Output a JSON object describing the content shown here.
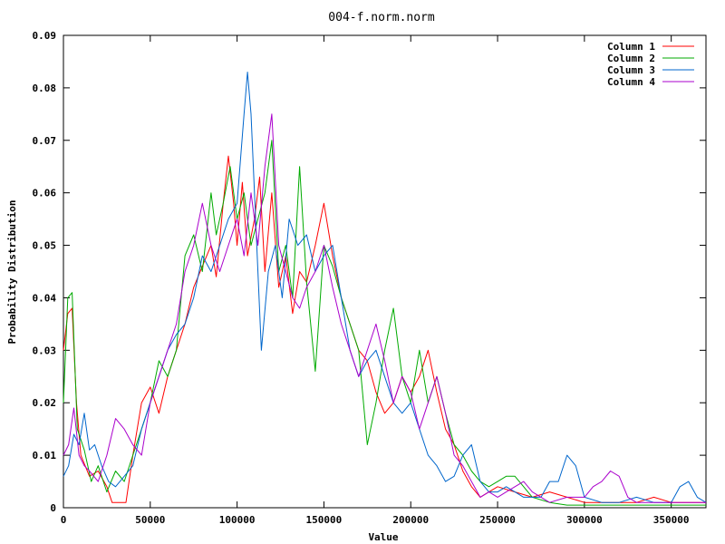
{
  "chart_data": {
    "type": "line",
    "title": "004-f.norm.norm",
    "xlabel": "Value",
    "ylabel": "Probability Distribution",
    "xlim": [
      0,
      370000
    ],
    "ylim": [
      0,
      0.09
    ],
    "x_ticks": [
      0,
      50000,
      100000,
      150000,
      200000,
      250000,
      300000,
      350000
    ],
    "y_ticks": [
      0,
      0.01,
      0.02,
      0.03,
      0.04,
      0.05,
      0.06,
      0.07,
      0.08,
      0.09
    ],
    "x_tick_labels": [
      "0",
      "50000",
      "100000",
      "150000",
      "200000",
      "250000",
      "300000",
      "350000"
    ],
    "y_tick_labels": [
      "0",
      "0.01",
      "0.02",
      "0.03",
      "0.04",
      "0.05",
      "0.06",
      "0.07",
      "0.08",
      "0.09"
    ],
    "grid": false,
    "legend_position": "top-right",
    "series": [
      {
        "name": "Column 1",
        "color": "#ff0000",
        "x": [
          0,
          2500,
          5000,
          7500,
          10000,
          15000,
          20000,
          25000,
          28000,
          32000,
          36000,
          40000,
          45000,
          50000,
          55000,
          60000,
          65000,
          70000,
          75000,
          80000,
          85000,
          88000,
          92000,
          95000,
          98000,
          100000,
          103000,
          106000,
          110000,
          113000,
          116000,
          120000,
          124000,
          128000,
          132000,
          136000,
          140000,
          145000,
          150000,
          155000,
          160000,
          165000,
          170000,
          175000,
          180000,
          185000,
          190000,
          195000,
          200000,
          205000,
          210000,
          215000,
          220000,
          225000,
          230000,
          235000,
          240000,
          245000,
          250000,
          260000,
          270000,
          280000,
          290000,
          300000,
          310000,
          320000,
          330000,
          340000,
          350000,
          360000,
          370000
        ],
        "y": [
          0.03,
          0.037,
          0.038,
          0.02,
          0.01,
          0.006,
          0.007,
          0.004,
          0.001,
          0.001,
          0.001,
          0.01,
          0.02,
          0.023,
          0.018,
          0.025,
          0.03,
          0.035,
          0.042,
          0.046,
          0.05,
          0.044,
          0.058,
          0.067,
          0.058,
          0.05,
          0.062,
          0.048,
          0.055,
          0.063,
          0.045,
          0.06,
          0.042,
          0.048,
          0.037,
          0.045,
          0.043,
          0.05,
          0.058,
          0.048,
          0.04,
          0.035,
          0.03,
          0.028,
          0.022,
          0.018,
          0.02,
          0.025,
          0.022,
          0.025,
          0.03,
          0.022,
          0.015,
          0.012,
          0.007,
          0.004,
          0.002,
          0.003,
          0.004,
          0.003,
          0.002,
          0.003,
          0.002,
          0.001,
          0.001,
          0.001,
          0.001,
          0.002,
          0.001,
          0.001,
          0.001
        ]
      },
      {
        "name": "Column 2",
        "color": "#00aa00",
        "x": [
          0,
          2500,
          5000,
          8000,
          12000,
          16000,
          20000,
          25000,
          30000,
          35000,
          40000,
          45000,
          50000,
          55000,
          60000,
          65000,
          70000,
          75000,
          80000,
          85000,
          88000,
          92000,
          96000,
          100000,
          104000,
          108000,
          112000,
          116000,
          120000,
          124000,
          128000,
          132000,
          136000,
          140000,
          145000,
          150000,
          155000,
          160000,
          165000,
          170000,
          175000,
          180000,
          185000,
          190000,
          195000,
          200000,
          205000,
          210000,
          215000,
          220000,
          225000,
          230000,
          235000,
          240000,
          245000,
          250000,
          255000,
          260000,
          265000,
          270000,
          280000,
          290000,
          300000,
          310000,
          320000,
          330000,
          340000,
          350000,
          360000,
          370000
        ],
        "y": [
          0.02,
          0.04,
          0.041,
          0.015,
          0.011,
          0.005,
          0.008,
          0.003,
          0.007,
          0.005,
          0.01,
          0.015,
          0.02,
          0.028,
          0.025,
          0.03,
          0.048,
          0.052,
          0.045,
          0.06,
          0.052,
          0.058,
          0.065,
          0.055,
          0.06,
          0.05,
          0.055,
          0.06,
          0.07,
          0.045,
          0.05,
          0.04,
          0.065,
          0.043,
          0.026,
          0.05,
          0.046,
          0.04,
          0.035,
          0.03,
          0.012,
          0.02,
          0.03,
          0.038,
          0.025,
          0.02,
          0.03,
          0.02,
          0.025,
          0.018,
          0.012,
          0.01,
          0.007,
          0.005,
          0.004,
          0.005,
          0.006,
          0.006,
          0.004,
          0.002,
          0.001,
          0.0005,
          0.0005,
          0.0005,
          0.0005,
          0.0005,
          0.0005,
          0.0005,
          0.0005,
          0.0005
        ]
      },
      {
        "name": "Column 3",
        "color": "#0066cc",
        "x": [
          0,
          3000,
          6000,
          9000,
          12000,
          15000,
          18000,
          22000,
          26000,
          30000,
          35000,
          40000,
          45000,
          50000,
          55000,
          60000,
          65000,
          70000,
          75000,
          80000,
          85000,
          90000,
          95000,
          100000,
          104000,
          106000,
          108000,
          110000,
          114000,
          118000,
          122000,
          126000,
          130000,
          135000,
          140000,
          145000,
          150000,
          155000,
          160000,
          165000,
          170000,
          175000,
          180000,
          185000,
          190000,
          195000,
          200000,
          205000,
          210000,
          215000,
          220000,
          225000,
          230000,
          235000,
          240000,
          245000,
          250000,
          255000,
          260000,
          265000,
          270000,
          275000,
          280000,
          285000,
          290000,
          295000,
          300000,
          310000,
          320000,
          330000,
          340000,
          350000,
          355000,
          360000,
          365000,
          370000
        ],
        "y": [
          0.006,
          0.008,
          0.014,
          0.012,
          0.018,
          0.011,
          0.012,
          0.008,
          0.005,
          0.004,
          0.006,
          0.008,
          0.015,
          0.02,
          0.025,
          0.03,
          0.033,
          0.035,
          0.04,
          0.048,
          0.045,
          0.05,
          0.055,
          0.058,
          0.075,
          0.083,
          0.075,
          0.06,
          0.03,
          0.045,
          0.05,
          0.04,
          0.055,
          0.05,
          0.052,
          0.045,
          0.048,
          0.05,
          0.04,
          0.03,
          0.025,
          0.028,
          0.03,
          0.025,
          0.02,
          0.018,
          0.02,
          0.015,
          0.01,
          0.008,
          0.005,
          0.006,
          0.01,
          0.012,
          0.005,
          0.003,
          0.003,
          0.004,
          0.003,
          0.002,
          0.002,
          0.002,
          0.005,
          0.005,
          0.01,
          0.008,
          0.002,
          0.001,
          0.001,
          0.002,
          0.001,
          0.001,
          0.004,
          0.005,
          0.002,
          0.001
        ]
      },
      {
        "name": "Column 4",
        "color": "#aa00cc",
        "x": [
          0,
          3000,
          6000,
          9000,
          12000,
          15000,
          20000,
          25000,
          30000,
          35000,
          40000,
          45000,
          50000,
          55000,
          60000,
          65000,
          70000,
          75000,
          80000,
          85000,
          90000,
          95000,
          100000,
          104000,
          108000,
          112000,
          116000,
          120000,
          124000,
          128000,
          132000,
          136000,
          140000,
          145000,
          150000,
          155000,
          160000,
          165000,
          170000,
          175000,
          180000,
          185000,
          190000,
          195000,
          200000,
          205000,
          210000,
          215000,
          220000,
          225000,
          230000,
          235000,
          240000,
          245000,
          250000,
          255000,
          260000,
          265000,
          270000,
          275000,
          280000,
          290000,
          300000,
          305000,
          310000,
          315000,
          320000,
          325000,
          330000,
          340000,
          350000,
          360000,
          370000
        ],
        "y": [
          0.01,
          0.012,
          0.019,
          0.01,
          0.008,
          0.007,
          0.005,
          0.01,
          0.017,
          0.015,
          0.012,
          0.01,
          0.02,
          0.025,
          0.03,
          0.035,
          0.045,
          0.05,
          0.058,
          0.05,
          0.045,
          0.05,
          0.055,
          0.048,
          0.06,
          0.05,
          0.065,
          0.075,
          0.05,
          0.045,
          0.04,
          0.038,
          0.042,
          0.045,
          0.05,
          0.042,
          0.035,
          0.03,
          0.025,
          0.03,
          0.035,
          0.028,
          0.02,
          0.025,
          0.022,
          0.015,
          0.02,
          0.025,
          0.018,
          0.01,
          0.008,
          0.005,
          0.002,
          0.003,
          0.002,
          0.003,
          0.004,
          0.005,
          0.003,
          0.002,
          0.001,
          0.002,
          0.002,
          0.004,
          0.005,
          0.007,
          0.006,
          0.002,
          0.001,
          0.001,
          0.001,
          0.001,
          0.001
        ]
      }
    ]
  }
}
